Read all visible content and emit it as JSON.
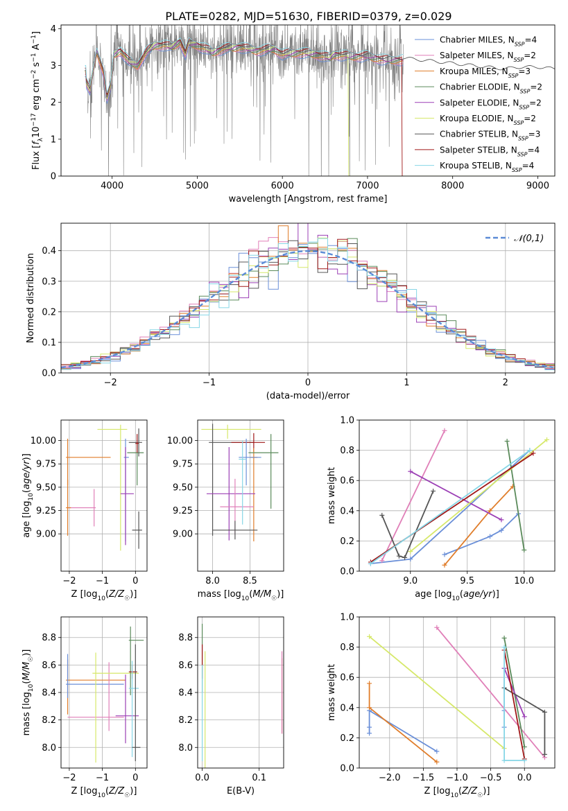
{
  "figure_title": "PLATE=0282, MJD=51630, FIBERID=0379, z=0.029",
  "colors": {
    "c1": "#6a8fd8",
    "c2": "#e07fb8",
    "c3": "#e07d2a",
    "c4": "#5a8a5a",
    "c5": "#9b3fb5",
    "c6": "#d6e86a",
    "c7": "#555555",
    "c8": "#a01818",
    "c9": "#86d6e6",
    "grey": "#808080",
    "grid": "#b0b0b0",
    "gauss": "#5b8bd6"
  },
  "chart_data": [
    {
      "id": "spectrum",
      "type": "line",
      "xlabel": "wavelength [Angstrom, rest frame]",
      "ylabel": "Flux [f_λ 10^-17 erg cm^-2 s^-1 A^-1]",
      "xlim": [
        3400,
        9200
      ],
      "ylim": [
        0,
        4.1
      ],
      "xticks": [
        4000,
        5000,
        6000,
        7000,
        8000,
        9000
      ],
      "yticks": [
        0,
        1,
        2,
        3,
        4
      ],
      "grid": false,
      "legend_position": "top-right",
      "legend": [
        {
          "name": "Chabrier MILES",
          "nssp": "4",
          "color": "c1"
        },
        {
          "name": "Salpeter MILES",
          "nssp": "2",
          "color": "c2"
        },
        {
          "name": "Kroupa MILES",
          "nssp": "3",
          "color": "c3"
        },
        {
          "name": "Chabrier ELODIE",
          "nssp": "2",
          "color": "c4"
        },
        {
          "name": "Salpeter ELODIE",
          "nssp": "2",
          "color": "c5"
        },
        {
          "name": "Kroupa ELODIE",
          "nssp": "2",
          "color": "c6"
        },
        {
          "name": "Chabrier STELIB",
          "nssp": "3",
          "color": "c7"
        },
        {
          "name": "Salpeter STELIB",
          "nssp": "4",
          "color": "c8"
        },
        {
          "name": "Kroupa STELIB",
          "nssp": "4",
          "color": "c9"
        }
      ],
      "data_range": [
        3700,
        7420
      ],
      "model_curve": {
        "x": [
          3700,
          3740,
          3780,
          3820,
          3860,
          3900,
          3940,
          3980,
          4020,
          4100,
          4200,
          4300,
          4400,
          4500,
          4600,
          4700,
          4800,
          4860,
          4900,
          5000,
          5100,
          5180,
          5300,
          5500,
          5700,
          5900,
          6000,
          6200,
          6400,
          6560,
          6600,
          6800,
          7000,
          7200,
          7400,
          7600,
          7800,
          8000,
          8200,
          8400,
          8600,
          8800,
          9000,
          9200
        ],
        "y": [
          2.5,
          2.3,
          2.9,
          3.4,
          3.1,
          2.8,
          2.1,
          2.4,
          3.3,
          3.4,
          3.1,
          3.0,
          3.35,
          3.55,
          3.55,
          3.5,
          3.65,
          3.3,
          3.6,
          3.55,
          3.45,
          3.35,
          3.45,
          3.5,
          3.4,
          3.45,
          3.3,
          3.35,
          3.3,
          3.2,
          3.3,
          3.25,
          3.25,
          3.15,
          3.15,
          3.1,
          3.05,
          3.0,
          2.95,
          2.9,
          2.85,
          2.9,
          2.9,
          2.85
        ]
      },
      "kroupa_elodie_cutoff": 6770,
      "salpeter_stelib_cutoff": 7400
    },
    {
      "id": "residuals",
      "type": "histogram",
      "xlabel": "(data-model)/error",
      "ylabel": "Normed distribution",
      "xlim": [
        -2.5,
        2.5
      ],
      "ylim": [
        0,
        0.49
      ],
      "xticks": [
        -2,
        -1,
        0,
        1,
        2
      ],
      "yticks": [
        0.0,
        0.1,
        0.2,
        0.3,
        0.4
      ],
      "grid": true,
      "bin_width": 0.1,
      "legend": {
        "label": "𝒩(0,1)",
        "position": "top-right"
      },
      "gaussian": {
        "mean": 0,
        "sigma": 1
      }
    },
    {
      "id": "age_vs_Z",
      "type": "errorbar",
      "xlabel": "Z [log10(Z/Z☉)]",
      "ylabel": "age [log10(age/yr)]",
      "xlim": [
        -2.25,
        0.35
      ],
      "ylim": [
        8.6,
        10.22
      ],
      "xticks": [
        -2,
        -1,
        0
      ],
      "yticks": [
        9.0,
        9.25,
        9.5,
        9.75,
        10.0
      ],
      "grid": true,
      "points": [
        {
          "color": "c2",
          "x": -1.25,
          "xerr": [
            0.8,
            0.05
          ],
          "y": 9.28,
          "yerr": [
            0.2,
            0.2
          ]
        },
        {
          "color": "c3",
          "x": -2.05,
          "xerr": [
            0.05,
            1.3
          ],
          "y": 9.82,
          "yerr": [
            0.3,
            0.2
          ]
        },
        {
          "color": "c3",
          "x": -2.05,
          "xerr": [
            0.05,
            0.1
          ],
          "y": 9.28,
          "yerr": [
            0.3,
            0.3
          ]
        },
        {
          "color": "c6",
          "x": -0.45,
          "xerr": [
            0.7,
            0.2
          ],
          "y": 10.12,
          "yerr": [
            1.3,
            0.05
          ]
        },
        {
          "color": "c1",
          "x": -0.3,
          "xerr": [
            0.05,
            0.1
          ],
          "y": 9.82,
          "yerr": [
            0.9,
            0.2
          ]
        },
        {
          "color": "c5",
          "x": -0.3,
          "xerr": [
            0.15,
            0.25
          ],
          "y": 9.43,
          "yerr": [
            0.55,
            0.5
          ]
        },
        {
          "color": "c4",
          "x": 0.05,
          "xerr": [
            0.3,
            0.2
          ],
          "y": 9.87,
          "yerr": [
            0.35,
            0.1
          ]
        },
        {
          "color": "c7",
          "x": 0.1,
          "xerr": [
            0.3,
            0.1
          ],
          "y": 9.98,
          "yerr": [
            0.15,
            0.15
          ]
        },
        {
          "color": "c7",
          "x": 0.1,
          "xerr": [
            0.2,
            0.1
          ],
          "y": 9.04,
          "yerr": [
            0.2,
            0.2
          ]
        },
        {
          "color": "c8",
          "x": 0.05,
          "xerr": [
            0.05,
            0.05
          ],
          "y": 9.97,
          "yerr": [
            0.1,
            0.1
          ]
        }
      ]
    },
    {
      "id": "age_vs_mass",
      "type": "errorbar",
      "xlabel": "mass [log10(M/M☉)]",
      "ylabel": "",
      "xlim": [
        7.8,
        8.95
      ],
      "ylim": [
        8.6,
        10.22
      ],
      "xticks": [
        8.0,
        8.5
      ],
      "yticks": [
        9.0,
        9.25,
        9.5,
        9.75,
        10.0
      ],
      "grid": true,
      "points": [
        {
          "color": "c6",
          "x": 8.2,
          "xerr": [
            0.35,
            0.45
          ],
          "y": 10.12,
          "yerr": [
            0.1,
            0.05
          ]
        },
        {
          "color": "c7",
          "x": 8.0,
          "xerr": [
            0.05,
            0.55
          ],
          "y": 9.98,
          "yerr": [
            1.0,
            0.2
          ]
        },
        {
          "color": "c8",
          "x": 8.55,
          "xerr": [
            0.3,
            0.15
          ],
          "y": 9.98,
          "yerr": [
            0.1,
            0.1
          ]
        },
        {
          "color": "c3",
          "x": 8.55,
          "xerr": [
            0.05,
            0.05
          ],
          "y": 9.82,
          "yerr": [
            0.9,
            0.1
          ]
        },
        {
          "color": "c1",
          "x": 8.45,
          "xerr": [
            0.1,
            0.2
          ],
          "y": 9.82,
          "yerr": [
            0.3,
            0.2
          ]
        },
        {
          "color": "c4",
          "x": 8.78,
          "xerr": [
            0.3,
            0.1
          ],
          "y": 9.87,
          "yerr": [
            0.6,
            0.2
          ]
        },
        {
          "color": "c5",
          "x": 8.22,
          "xerr": [
            0.3,
            0.35
          ],
          "y": 9.43,
          "yerr": [
            0.5,
            0.5
          ]
        },
        {
          "color": "c2",
          "x": 8.3,
          "xerr": [
            0.2,
            0.25
          ],
          "y": 9.29,
          "yerr": [
            0.3,
            0.3
          ]
        },
        {
          "color": "c9",
          "x": 8.4,
          "xerr": [
            0.05,
            0.05
          ],
          "y": 9.8,
          "yerr": [
            0.7,
            0.2
          ]
        },
        {
          "color": "c7",
          "x": 8.3,
          "xerr": [
            0.3,
            0.3
          ],
          "y": 9.04,
          "yerr": [
            0.1,
            0.1
          ]
        }
      ]
    },
    {
      "id": "weight_vs_age",
      "type": "line",
      "xlabel": "age [log10(age/yr)]",
      "ylabel": "mass weight",
      "xlim": [
        8.55,
        10.27
      ],
      "ylim": [
        0,
        1
      ],
      "xticks": [
        9.0,
        9.5,
        10.0
      ],
      "yticks": [
        0.0,
        0.2,
        0.4,
        0.6,
        0.8,
        1.0
      ],
      "grid": true,
      "series": [
        {
          "color": "c1",
          "x": [
            9.3,
            9.7,
            9.8,
            9.95
          ],
          "y": [
            0.11,
            0.23,
            0.27,
            0.38
          ]
        },
        {
          "color": "c1",
          "x": [
            8.65,
            9.0,
            10.05
          ],
          "y": [
            0.05,
            0.08,
            0.8
          ]
        },
        {
          "color": "c2",
          "x": [
            8.75,
            9.3
          ],
          "y": [
            0.07,
            0.93
          ]
        },
        {
          "color": "c3",
          "x": [
            9.3,
            9.7,
            9.9
          ],
          "y": [
            0.04,
            0.4,
            0.56
          ]
        },
        {
          "color": "c4",
          "x": [
            9.85,
            10.0
          ],
          "y": [
            0.86,
            0.14
          ]
        },
        {
          "color": "c5",
          "x": [
            9.0,
            9.8
          ],
          "y": [
            0.66,
            0.34
          ]
        },
        {
          "color": "c6",
          "x": [
            9.0,
            10.2
          ],
          "y": [
            0.13,
            0.87
          ]
        },
        {
          "color": "c7",
          "x": [
            8.75,
            8.9,
            8.95,
            9.2
          ],
          "y": [
            0.37,
            0.1,
            0.09,
            0.53
          ]
        },
        {
          "color": "c8",
          "x": [
            8.65,
            10.08
          ],
          "y": [
            0.06,
            0.78
          ]
        },
        {
          "color": "c9",
          "x": [
            8.65,
            10.05
          ],
          "y": [
            0.05,
            0.8
          ]
        }
      ]
    },
    {
      "id": "mass_vs_Z",
      "type": "errorbar",
      "xlabel": "Z [log10(Z/Z☉)]",
      "ylabel": "mass [log10(M/M☉)]",
      "xlim": [
        -2.25,
        0.35
      ],
      "ylim": [
        7.85,
        8.95
      ],
      "xticks": [
        -2,
        -1,
        0
      ],
      "yticks": [
        8.0,
        8.2,
        8.4,
        8.6,
        8.8
      ],
      "grid": true,
      "points": [
        {
          "color": "c3",
          "x": -2.05,
          "xerr": [
            0.05,
            1.75
          ],
          "y": 8.49,
          "yerr": [
            0.25,
            0.15
          ]
        },
        {
          "color": "c1",
          "x": -2.05,
          "xerr": [
            0.05,
            1.7
          ],
          "y": 8.46,
          "yerr": [
            0.1,
            0.22
          ]
        },
        {
          "color": "c2",
          "x": -0.8,
          "xerr": [
            1.25,
            0.45
          ],
          "y": 8.22,
          "yerr": [
            0.1,
            0.4
          ]
        },
        {
          "color": "c6",
          "x": -1.2,
          "xerr": [
            0.1,
            1.3
          ],
          "y": 8.54,
          "yerr": [
            0.65,
            0.15
          ]
        },
        {
          "color": "c5",
          "x": -0.3,
          "xerr": [
            0.3,
            0.4
          ],
          "y": 8.23,
          "yerr": [
            0.2,
            0.3
          ]
        },
        {
          "color": "c4",
          "x": -0.15,
          "xerr": [
            0.05,
            0.4
          ],
          "y": 8.78,
          "yerr": [
            0.4,
            0.1
          ]
        },
        {
          "color": "c8",
          "x": -0.1,
          "xerr": [
            0.1,
            0.15
          ],
          "y": 8.55,
          "yerr": [
            0.05,
            0.05
          ]
        },
        {
          "color": "c9",
          "x": -0.1,
          "xerr": [
            0.1,
            0.2
          ],
          "y": 8.43,
          "yerr": [
            0.5,
            0.2
          ]
        },
        {
          "color": "c7",
          "x": 0.0,
          "xerr": [
            0.1,
            0.15
          ],
          "y": 8.0,
          "yerr": [
            0.1,
            0.75
          ]
        }
      ]
    },
    {
      "id": "mass_vs_ebv",
      "type": "errorbar",
      "xlabel": "E(B-V)",
      "ylabel": "",
      "xlim": [
        -0.008,
        0.143
      ],
      "ylim": [
        7.85,
        8.95
      ],
      "xticks": [
        0.0,
        0.1
      ],
      "yticks": [
        8.0,
        8.2,
        8.4,
        8.6,
        8.8
      ],
      "grid": true,
      "points": [
        {
          "color": "c4",
          "x": 0.0,
          "xerr": [
            0,
            0
          ],
          "y": 8.7,
          "yerr": [
            0.3,
            0.2
          ]
        },
        {
          "color": "c8",
          "x": 0.0,
          "xerr": [
            0,
            0
          ],
          "y": 8.6,
          "yerr": [
            0.1,
            0.15
          ]
        },
        {
          "color": "c9",
          "x": 0.0,
          "xerr": [
            0,
            0
          ],
          "y": 8.3,
          "yerr": [
            0.4,
            0.3
          ]
        },
        {
          "color": "c6",
          "x": 0.005,
          "xerr": [
            0,
            0
          ],
          "y": 8.2,
          "yerr": [
            0.35,
            0.5
          ]
        },
        {
          "color": "c3",
          "x": 0.14,
          "xerr": [
            0,
            0
          ],
          "y": 8.4,
          "yerr": [
            0.3,
            0.25
          ]
        },
        {
          "color": "c2",
          "x": 0.14,
          "xerr": [
            0,
            0
          ],
          "y": 8.5,
          "yerr": [
            0.4,
            0.2
          ]
        }
      ]
    },
    {
      "id": "weight_vs_Z",
      "type": "line",
      "xlabel": "Z [log10(Z/Z☉)]",
      "ylabel": "mass weight",
      "xlim": [
        -2.45,
        0.45
      ],
      "ylim": [
        0,
        1
      ],
      "xticks": [
        -2.0,
        -1.5,
        -1.0,
        -0.5,
        0.0
      ],
      "yticks": [
        0.0,
        0.2,
        0.4,
        0.6,
        0.8,
        1.0
      ],
      "grid": true,
      "series": [
        {
          "color": "c1",
          "x": [
            -1.3,
            -2.3,
            -2.3,
            -2.3
          ],
          "y": [
            0.11,
            0.38,
            0.27,
            0.23
          ]
        },
        {
          "color": "c1",
          "x": [
            -0.3,
            -0.3,
            -0.3,
            -0.3
          ],
          "y": [
            0.66,
            0.53,
            0.38,
            0.27
          ]
        },
        {
          "color": "c2",
          "x": [
            -1.3,
            0.3
          ],
          "y": [
            0.93,
            0.07
          ]
        },
        {
          "color": "c3",
          "x": [
            -1.3,
            -2.3,
            -2.3
          ],
          "y": [
            0.04,
            0.4,
            0.56
          ]
        },
        {
          "color": "c4",
          "x": [
            -0.3,
            0.0
          ],
          "y": [
            0.86,
            0.14
          ]
        },
        {
          "color": "c5",
          "x": [
            -0.3,
            0.0
          ],
          "y": [
            0.66,
            0.34
          ]
        },
        {
          "color": "c6",
          "x": [
            -2.3,
            -0.3
          ],
          "y": [
            0.87,
            0.13
          ]
        },
        {
          "color": "c7",
          "x": [
            -0.3,
            0.3,
            0.3
          ],
          "y": [
            0.53,
            0.37,
            0.09
          ]
        },
        {
          "color": "c8",
          "x": [
            -0.3,
            0.0
          ],
          "y": [
            0.78,
            0.06
          ]
        },
        {
          "color": "c9",
          "x": [
            -0.3,
            -0.3,
            0.0
          ],
          "y": [
            0.8,
            0.05,
            0.05
          ]
        }
      ]
    }
  ]
}
